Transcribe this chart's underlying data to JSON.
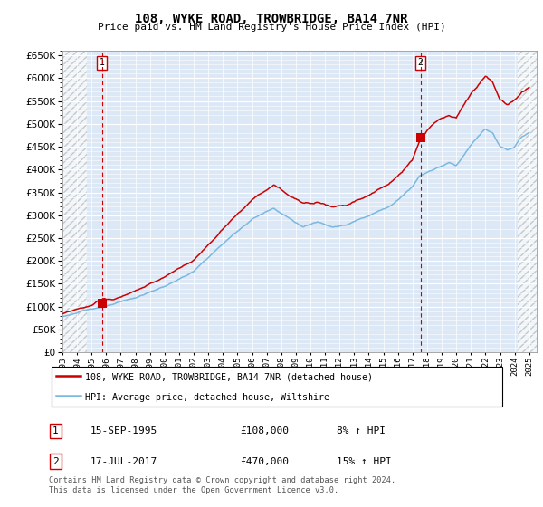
{
  "title": "108, WYKE ROAD, TROWBRIDGE, BA14 7NR",
  "subtitle": "Price paid vs. HM Land Registry's House Price Index (HPI)",
  "sale1_date": 1995.71,
  "sale1_price": 108000,
  "sale1_label": "1",
  "sale1_text": "15-SEP-1995",
  "sale1_amount": "£108,000",
  "sale1_hpi": "8% ↑ HPI",
  "sale2_date": 2017.54,
  "sale2_price": 470000,
  "sale2_label": "2",
  "sale2_text": "17-JUL-2017",
  "sale2_amount": "£470,000",
  "sale2_hpi": "15% ↑ HPI",
  "legend_line1": "108, WYKE ROAD, TROWBRIDGE, BA14 7NR (detached house)",
  "legend_line2": "HPI: Average price, detached house, Wiltshire",
  "footer": "Contains HM Land Registry data © Crown copyright and database right 2024.\nThis data is licensed under the Open Government Licence v3.0.",
  "hpi_color": "#7ab8e0",
  "sale_color": "#cc0000",
  "plot_bg": "#dce8f5",
  "ylim": [
    0,
    660000
  ],
  "xlim_start": 1993.0,
  "xlim_end": 2025.5,
  "hatch_left_end": 1994.7,
  "hatch_right_start": 2024.2
}
